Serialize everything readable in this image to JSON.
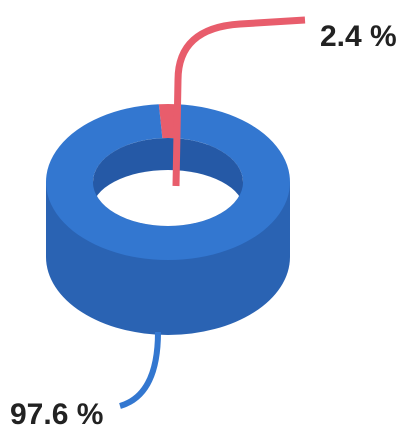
{
  "chart_data": {
    "type": "pie",
    "series": [
      {
        "color": "#e85d6c",
        "values": [
          2.4,
          97.6
        ],
        "value_labels": [
          "2.4 %",
          "97.6 %"
        ],
        "colors": [
          "#e85d6c",
          "#3377d0"
        ]
      }
    ]
  }
}
